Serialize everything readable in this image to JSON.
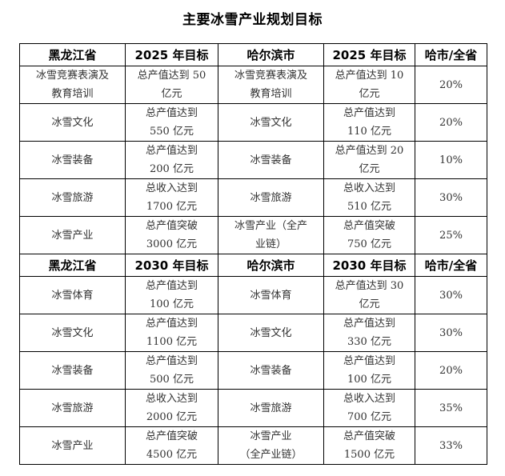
{
  "title": "主要冰雪产业规划目标",
  "sections": [
    {
      "header": [
        "黑龙江省",
        "2025 年目标",
        "哈尔滨市",
        "2025 年目标",
        "哈市/全省"
      ],
      "rows": [
        [
          "冰雪竞赛表演及\n教育培训",
          "总产值达到 50\n亿元",
          "冰雪竞赛表演及\n教育培训",
          "总产值达到 10\n亿元",
          "20%"
        ],
        [
          "冰雪文化",
          "总产值达到\n550 亿元",
          "冰雪文化",
          "总产值达到\n110 亿元",
          "20%"
        ],
        [
          "冰雪装备",
          "总产值达到\n200 亿元",
          "冰雪装备",
          "总产值达到 20\n亿元",
          "10%"
        ],
        [
          "冰雪旅游",
          "总收入达到\n1700 亿元",
          "冰雪旅游",
          "总收入达到\n510 亿元",
          "30%"
        ],
        [
          "冰雪产业",
          "总产值突破\n3000 亿元",
          "冰雪产业（全产\n业链）",
          "总产值突破\n750 亿元",
          "25%"
        ]
      ]
    },
    {
      "header": [
        "黑龙江省",
        "2030 年目标",
        "哈尔滨市",
        "2030 年目标",
        "哈市/全省"
      ],
      "rows": [
        [
          "冰雪体育",
          "总产值达到\n100 亿元",
          "冰雪体育",
          "总产值达到 30\n亿元",
          "30%"
        ],
        [
          "冰雪文化",
          "总产值达到\n1100 亿元",
          "冰雪文化",
          "总产值达到\n330 亿元",
          "30%"
        ],
        [
          "冰雪装备",
          "总产值达到\n500 亿元",
          "冰雪装备",
          "总产值达到\n100 亿元",
          "20%"
        ],
        [
          "冰雪旅游",
          "总收入达到\n2000 亿元",
          "冰雪旅游",
          "总收入达到\n700 亿元",
          "35%"
        ],
        [
          "冰雪产业",
          "总产值突破\n4500 亿元",
          "冰雪产业\n（全产业链）",
          "总产值突破\n1500 亿元",
          "33%"
        ]
      ]
    }
  ]
}
